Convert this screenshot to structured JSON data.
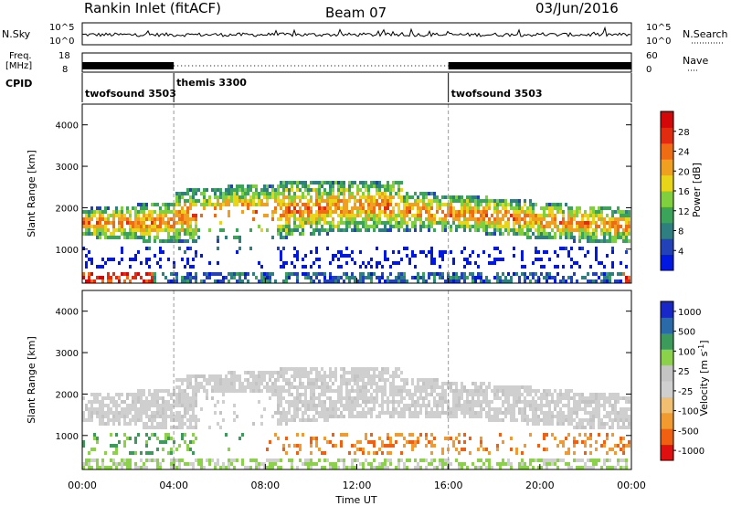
{
  "header": {
    "station": "Rankin Inlet (fitACF)",
    "beam": "Beam 07",
    "date": "03/Jun/2016"
  },
  "strip_labels": {
    "nsky": "N.Sky",
    "nsky_ticks": [
      "10^5",
      "10^0"
    ],
    "nsearch": "N.Search",
    "freq_line1": "Freq.",
    "freq_line2": "[MHz]",
    "freq_ticks": [
      "18",
      "8"
    ],
    "nave": "Nave",
    "nave_ticks": [
      "60",
      "0"
    ],
    "cpid": "CPID"
  },
  "cpid_segments": [
    {
      "label": "twofsound 3503",
      "start_h": 0,
      "end_h": 4
    },
    {
      "label": "themis 3300",
      "start_h": 4,
      "end_h": 16
    },
    {
      "label": "twofsound 3503",
      "start_h": 16,
      "end_h": 24
    }
  ],
  "legend_colors": {
    "power": [
      "#0018e0",
      "#2442b8",
      "#2f7f80",
      "#3ca45a",
      "#7fcf3e",
      "#e8d418",
      "#f0a020",
      "#ee6d14",
      "#e22c10",
      "#d40808"
    ],
    "velocity": [
      "#e01010",
      "#f06010",
      "#f09a30",
      "#f0c070",
      "#cfcfcf",
      "#c4c4c4",
      "#8bd24a",
      "#3c9a5a",
      "#2a6aa8",
      "#1828c8"
    ]
  },
  "chart_data": [
    {
      "type": "heatmap",
      "quantity": "Power",
      "ylabel": "Slant Range [km]",
      "xlabel": "Time UT",
      "x_range_h": [
        0,
        24
      ],
      "ylim": [
        180,
        4500
      ],
      "y_ticks": [
        "1000",
        "2000",
        "3000",
        "4000"
      ],
      "x_ticks": [
        "00:00",
        "04:00",
        "08:00",
        "12:00",
        "16:00",
        "20:00",
        "00:00"
      ],
      "colorbar_label": "Power [dB]",
      "colorbar_ticks": [
        "4",
        "8",
        "12",
        "16",
        "20",
        "24",
        "28"
      ],
      "colorbar_range": [
        0,
        30
      ]
    },
    {
      "type": "heatmap",
      "quantity": "Velocity",
      "ylabel": "Slant Range [km]",
      "xlabel": "Time UT",
      "x_range_h": [
        0,
        24
      ],
      "ylim": [
        180,
        4500
      ],
      "y_ticks": [
        "1000",
        "2000",
        "3000",
        "4000"
      ],
      "x_ticks": [
        "00:00",
        "04:00",
        "08:00",
        "12:00",
        "16:00",
        "20:00",
        "00:00"
      ],
      "colorbar_label": "Velocity [m s",
      "colorbar_label_sup": "-1",
      "colorbar_label_end": "]",
      "colorbar_ticks": [
        "1000",
        "500",
        "100",
        "25",
        "-25",
        "-100",
        "-500",
        "-1000"
      ]
    }
  ]
}
